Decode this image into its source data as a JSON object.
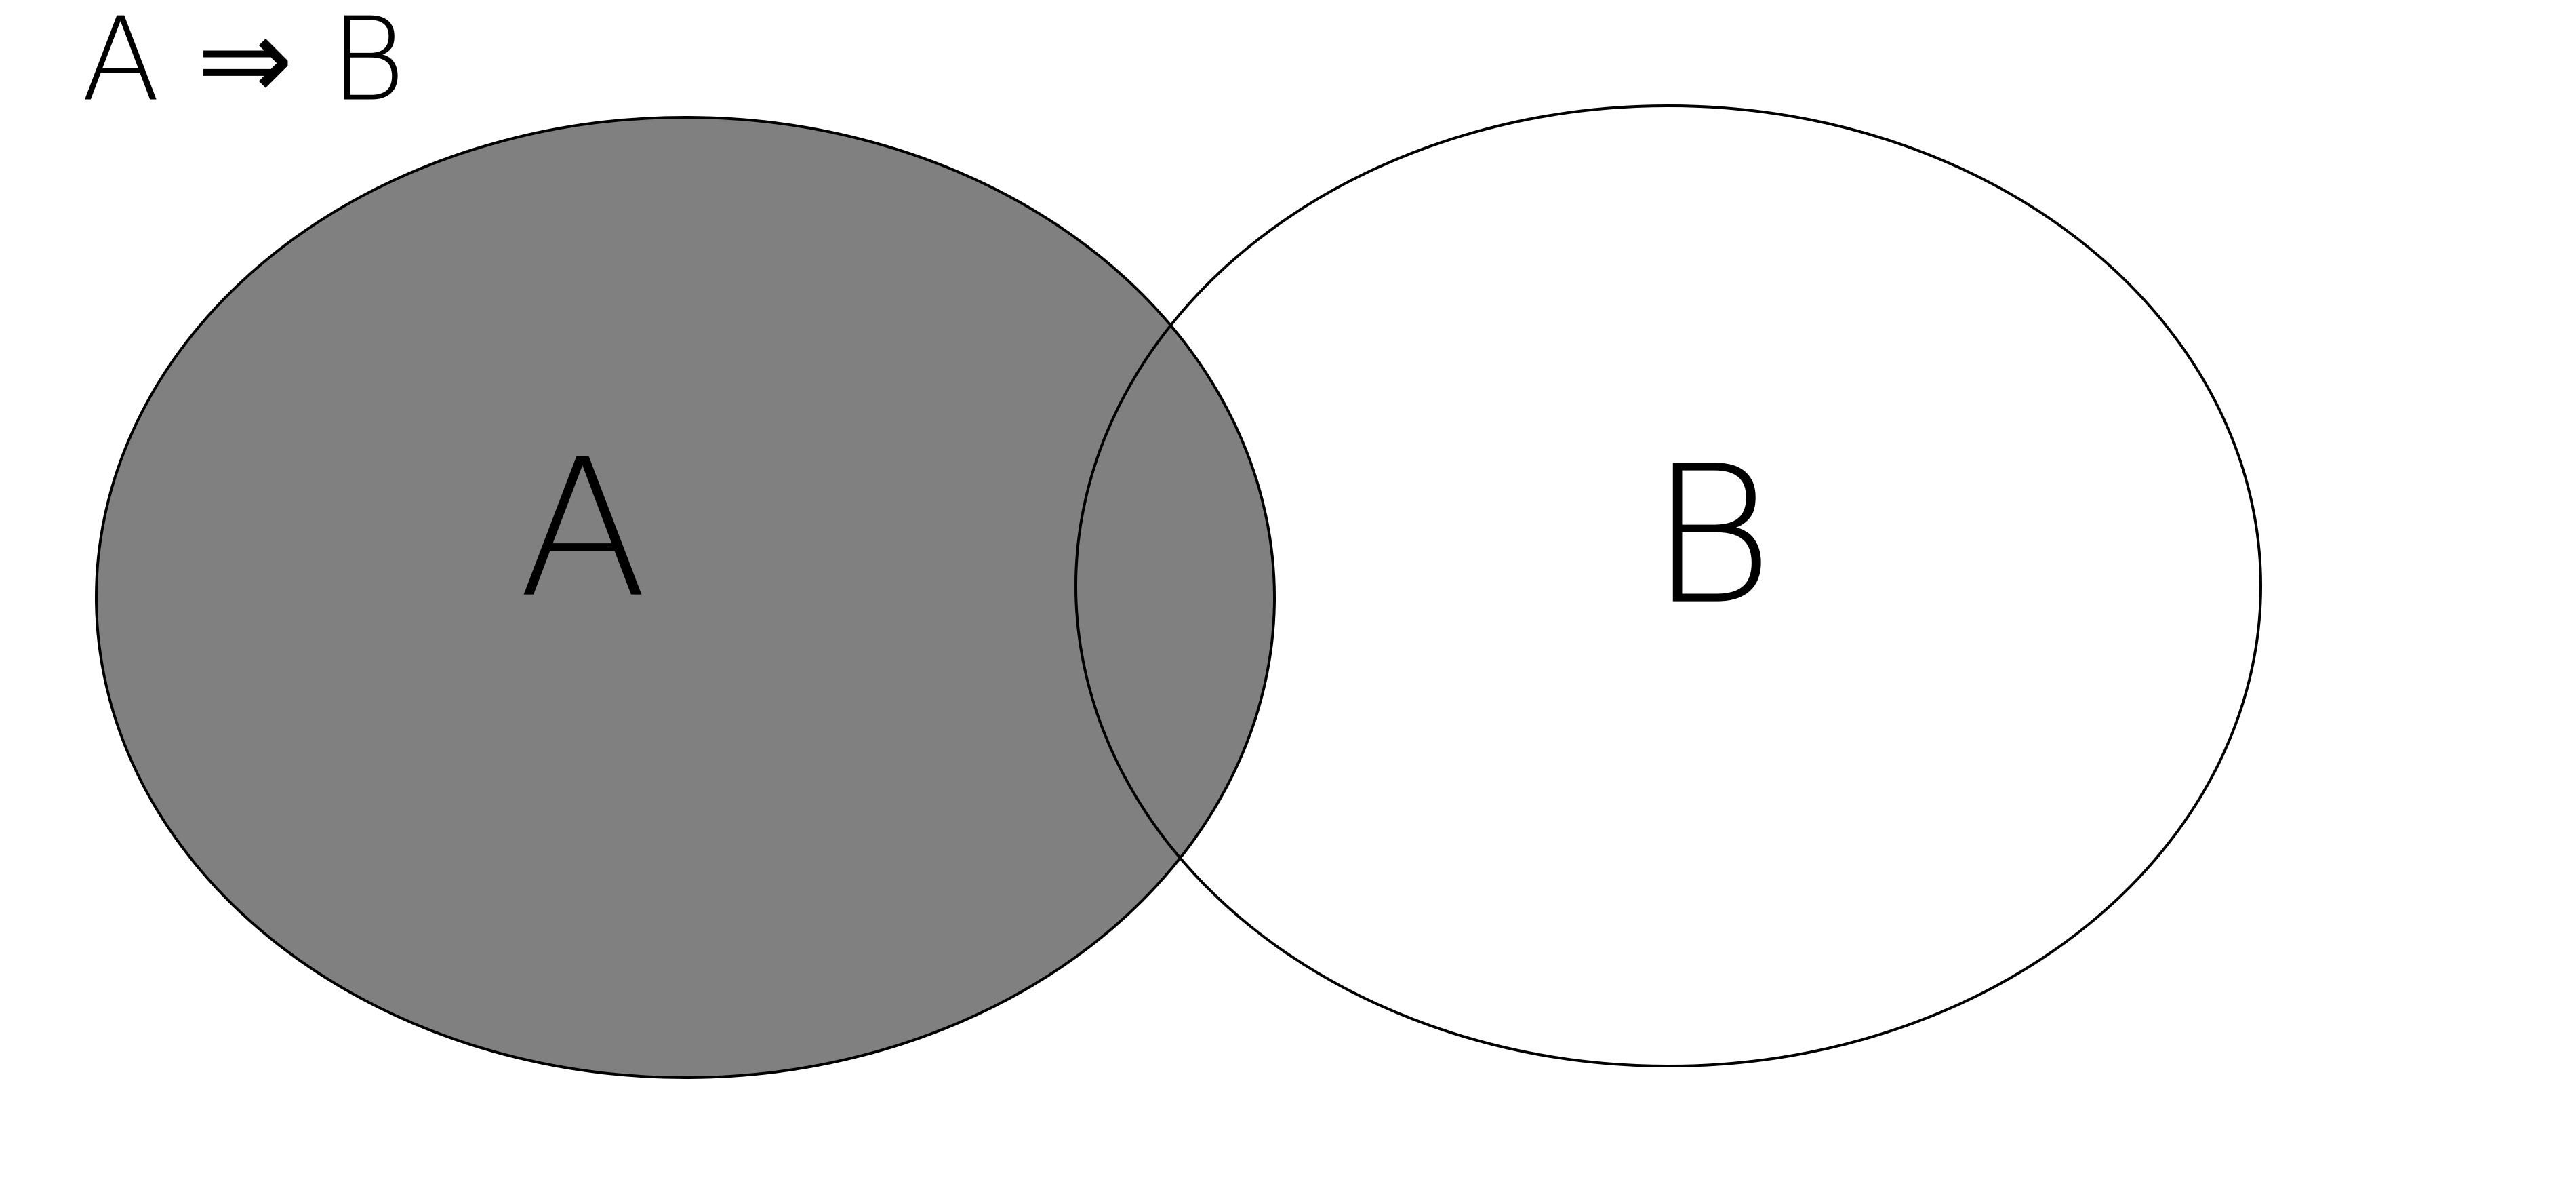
{
  "title": "A ⇒ B",
  "sets": [
    {
      "label": "A"
    },
    {
      "label": "B"
    }
  ]
}
